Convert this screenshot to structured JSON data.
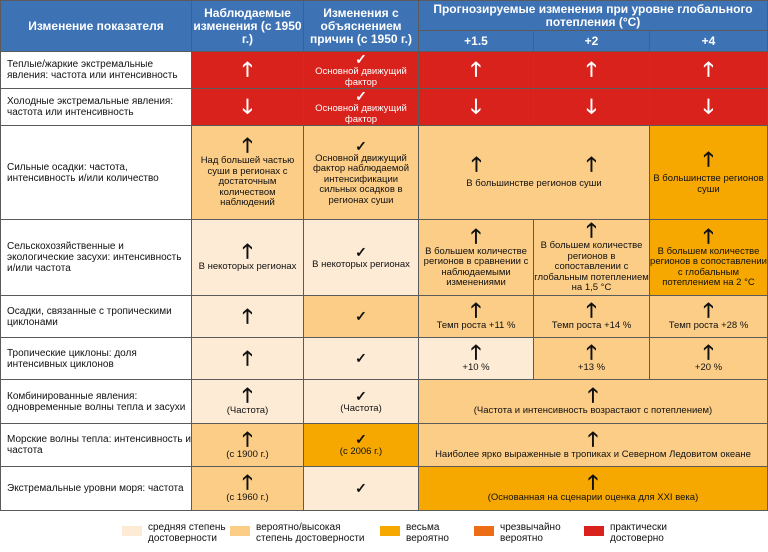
{
  "header": {
    "col0": "Изменение показателя",
    "col1": "Наблюдаемые изменения (с 1950 г.)",
    "col2": "Изменения с объяснением причин (с 1950 г.)",
    "proj": "Прогнозируемые изменения при уровне глобального потепления (°C)",
    "p15": "+1.5",
    "p2": "+2",
    "p4": "+4"
  },
  "symbols": {
    "up": "🡑",
    "down": "🡓",
    "check": "✓"
  },
  "rows": [
    {
      "label": "Теплые/жаркие экстремальные явления: частота или интенсивность",
      "obs": "",
      "attr": "Основной движущий фактор",
      "p15": "",
      "p2": "",
      "p4": ""
    },
    {
      "label": "Холодные экстремальные явления: частота или интенсивность",
      "obs": "",
      "attr": "Основной движущий фактор",
      "p15": "",
      "p2": "",
      "p4": ""
    },
    {
      "label": "Сильные осадки: частота, интенсивность и/или количество",
      "obs": "Над большей частью суши в регионах с достаточным количеством наблюдений",
      "attr": "Основной движущий фактор наблюдаемой интенсификации сильных осадков в регионах суши",
      "p15_2": "В большинстве регионов суши",
      "p4": "В большинстве регионов суши"
    },
    {
      "label": "Сельскохозяйственные и экологические засухи: интенсивность и/или частота",
      "obs": "В некоторых регионах",
      "attr": "В некоторых регионах",
      "p15": "В большем количестве регионов в сравнении с наблюдаемыми изменениями",
      "p2": "В большем количестве регионов в сопоставлении с глобальным потеплением на 1,5 °C",
      "p4": "В большем количестве регионов в сопоставлении с глобальным потеплением на 2 °C"
    },
    {
      "label": "Осадки, связанные с тропическими циклонами",
      "p15": "Темп роста  +11 %",
      "p2": "Темп роста  +14 %",
      "p4": "Темп роста  +28 %"
    },
    {
      "label": "Тропические циклоны: доля интенсивных циклонов",
      "p15": "+10 %",
      "p2": "+13 %",
      "p4": "+20 %"
    },
    {
      "label": "Комбинированные явления: одновременные волны тепла и засухи",
      "obs": "(Частота)",
      "attr": "(Частота)",
      "proj": "(Частота и интенсивность возрастают с потеплением)"
    },
    {
      "label": "Морские волны тепла: интенсивность и частота",
      "obs": "(с 1900 г.)",
      "attr": "(с 2006 г.)",
      "proj": "Наиболее ярко выраженные в тропиках и Северном Ледовитом океане"
    },
    {
      "label": "Экстремальные уровни моря: частота",
      "obs": "(с 1960 г.)",
      "attr": "",
      "proj": "(Основанная на сценарии оценка для XXI века)"
    }
  ],
  "legend": [
    {
      "label": "средняя степень достоверности",
      "color": "#fdebd5"
    },
    {
      "label": "вероятно/высокая степень достоверности",
      "color": "#fbcd87"
    },
    {
      "label": "весьма вероятно",
      "color": "#f6a800"
    },
    {
      "label": "чрезвычайно вероятно",
      "color": "#ec6d15"
    },
    {
      "label": "практически достоверно",
      "color": "#d9221c"
    }
  ]
}
